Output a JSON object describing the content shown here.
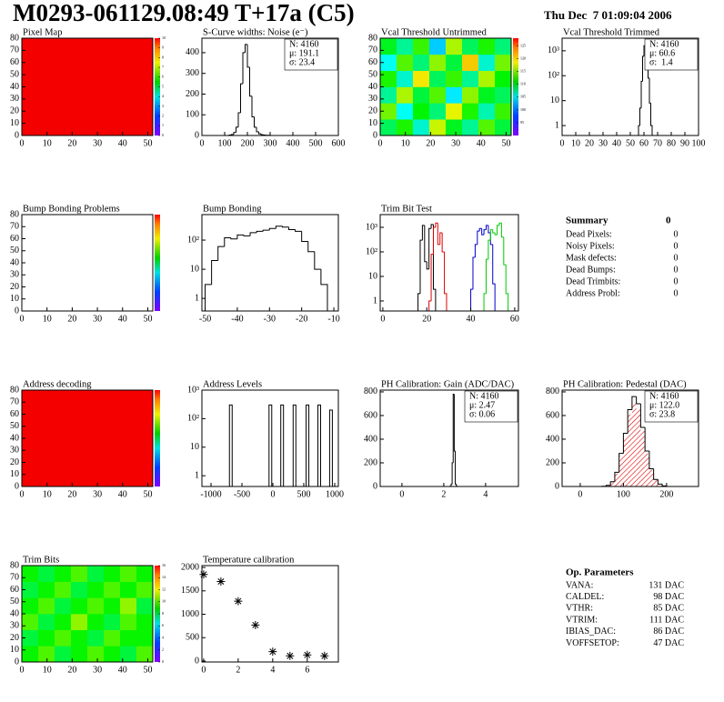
{
  "header": {
    "title": "M0293-061129.08:49 T+17a (C5)",
    "date": "Thu Dec  7 01:09:04 2006"
  },
  "chart_data": [
    {
      "type": "heatmap",
      "title": "Pixel Map",
      "xlim": [
        0,
        52
      ],
      "ylim": [
        0,
        80
      ],
      "xticks": [
        0,
        10,
        20,
        30,
        40,
        50
      ],
      "yticks": [
        0,
        10,
        20,
        30,
        40,
        50,
        60,
        70,
        80
      ],
      "zlim": [
        0,
        10
      ],
      "zticks": [
        0,
        1,
        2,
        3,
        4,
        5,
        6,
        7,
        8,
        9,
        10
      ],
      "z": [
        [
          10
        ]
      ]
    },
    {
      "type": "histogram",
      "title": "S-Curve widths: Noise (e⁻)",
      "xlim": [
        0,
        600
      ],
      "ylim": [
        0,
        470
      ],
      "xticks": [
        0,
        100,
        200,
        300,
        400,
        500,
        600
      ],
      "yticks": [
        0,
        100,
        200,
        300,
        400
      ],
      "log": false,
      "stats": [
        "N: 4160",
        "μ: 191.1",
        "σ: 23.4"
      ],
      "series": [
        {
          "color": "#000000",
          "bins": [
            120,
            130,
            140,
            150,
            160,
            170,
            180,
            190,
            200,
            210,
            220,
            230,
            240,
            250,
            260,
            270,
            280,
            290,
            300
          ],
          "values": [
            2,
            5,
            15,
            40,
            110,
            250,
            400,
            440,
            330,
            190,
            90,
            40,
            18,
            8,
            4,
            2,
            1,
            1
          ]
        }
      ]
    },
    {
      "type": "heatmap",
      "title": "Vcal Threshold Untrimmed",
      "xlim": [
        0,
        52
      ],
      "ylim": [
        0,
        80
      ],
      "xticks": [
        0,
        10,
        20,
        30,
        40,
        50
      ],
      "yticks": [
        0,
        10,
        20,
        30,
        40,
        50,
        60,
        70,
        80
      ],
      "zlim": [
        90,
        128
      ],
      "zticks": [
        95,
        100,
        105,
        110,
        115,
        120,
        125
      ],
      "z": [
        [
          108,
          112,
          104,
          118,
          110,
          106,
          114,
          109
        ],
        [
          115,
          103,
          111,
          107,
          119,
          112,
          105,
          113
        ],
        [
          106,
          117,
          109,
          114,
          102,
          116,
          110,
          108
        ],
        [
          112,
          104,
          120,
          108,
          113,
          106,
          117,
          111
        ],
        [
          103,
          114,
          107,
          116,
          109,
          121,
          104,
          115
        ],
        [
          110,
          106,
          113,
          101,
          117,
          108,
          112,
          107
        ]
      ]
    },
    {
      "type": "histogram",
      "title": "Vcal Threshold Trimmed",
      "xlim": [
        0,
        100
      ],
      "ylim": [
        0.4,
        3200
      ],
      "xticks": [
        0,
        10,
        20,
        30,
        40,
        50,
        60,
        70,
        80,
        90,
        100
      ],
      "yticks": [
        1,
        10,
        {
          "value": 100,
          "label": "10²"
        },
        {
          "value": 1000,
          "label": "10³"
        }
      ],
      "log": true,
      "stats": [
        "N: 4160",
        "μ: 60.6",
        "σ:  1.4"
      ],
      "series": [
        {
          "color": "#000000",
          "bins": [
            56,
            57,
            58,
            59,
            60,
            61,
            62,
            63,
            64,
            65,
            66
          ],
          "values": [
            1,
            5,
            60,
            600,
            1600,
            1400,
            400,
            80,
            8,
            1
          ]
        }
      ]
    },
    {
      "type": "heatmap",
      "title": "Bump Bonding Problems",
      "xlim": [
        0,
        52
      ],
      "ylim": [
        0,
        80
      ],
      "xticks": [
        0,
        10,
        20,
        30,
        40,
        50
      ],
      "yticks": [
        0,
        10,
        20,
        30,
        40,
        50,
        60,
        70,
        80
      ],
      "zlim": [
        0,
        1
      ],
      "z": []
    },
    {
      "type": "histogram",
      "title": "Bump Bonding",
      "xlim": [
        -51,
        -8.6
      ],
      "ylim": [
        0.37,
        750
      ],
      "xticks": [
        -50,
        -40,
        -30,
        -20,
        -10
      ],
      "yticks": [
        1,
        10,
        {
          "value": 100,
          "label": "10²"
        }
      ],
      "log": true,
      "series": [
        {
          "color": "#000000",
          "bins": [
            -50,
            -48,
            -46,
            -44,
            -42,
            -40,
            -38,
            -36,
            -34,
            -32,
            -30,
            -28,
            -26,
            -24,
            -22,
            -20,
            -18,
            -16,
            -14,
            -12
          ],
          "values": [
            3,
            20,
            60,
            120,
            110,
            150,
            140,
            180,
            200,
            220,
            250,
            300,
            280,
            230,
            200,
            90,
            40,
            10,
            3
          ]
        }
      ]
    },
    {
      "type": "histogram",
      "title": "Trim Bit Test",
      "xlim": [
        -1.2,
        61.7
      ],
      "ylim": [
        0.39,
        3300
      ],
      "xticks": [
        0,
        20,
        40,
        60
      ],
      "yticks": [
        1,
        10,
        {
          "value": 100,
          "label": "10²"
        },
        {
          "value": 1000,
          "label": "10³"
        }
      ],
      "log": true,
      "series": [
        {
          "color": "#000000",
          "bins": [
            16,
            17,
            18,
            19,
            20,
            21,
            22,
            23,
            24
          ],
          "values": [
            2,
            300,
            1200,
            40,
            20,
            900,
            1300,
            3
          ]
        },
        {
          "color": "#dd0000",
          "bins": [
            21,
            22,
            23,
            24,
            25,
            26,
            27,
            28,
            29
          ],
          "values": [
            1,
            80,
            1000,
            1500,
            200,
            600,
            100,
            2
          ]
        },
        {
          "color": "#0000cc",
          "bins": [
            40,
            41,
            42,
            43,
            44,
            45,
            46,
            47,
            48,
            49,
            50,
            51
          ],
          "values": [
            3,
            60,
            200,
            700,
            900,
            500,
            800,
            1200,
            600,
            200,
            5
          ]
        },
        {
          "color": "#00cc00",
          "bins": [
            46,
            47,
            48,
            49,
            50,
            51,
            52,
            53,
            54,
            55,
            56,
            57
          ],
          "values": [
            2,
            50,
            300,
            800,
            600,
            500,
            1200,
            1500,
            400,
            30,
            2
          ]
        }
      ]
    },
    {
      "type": "heatmap",
      "title": "Address decoding",
      "xlim": [
        0,
        52
      ],
      "ylim": [
        0,
        80
      ],
      "xticks": [
        0,
        10,
        20,
        30,
        40,
        50
      ],
      "yticks": [
        0,
        10,
        20,
        30,
        40,
        50,
        60,
        70,
        80
      ],
      "zlim": [
        0,
        1
      ],
      "z": [
        [
          1
        ]
      ]
    },
    {
      "type": "spikes",
      "title": "Address Levels",
      "xlim": [
        -1147,
        1059
      ],
      "ylim": [
        0.42,
        1000
      ],
      "xticks": [
        -1000,
        -500,
        0,
        500,
        1000
      ],
      "yticks": [
        1,
        10,
        {
          "value": 100,
          "label": "10²"
        },
        {
          "value": 1000,
          "label": "10³"
        }
      ],
      "log": true,
      "x": [
        -680,
        -40,
        150,
        350,
        560,
        750,
        940
      ],
      "values": [
        300,
        300,
        300,
        300,
        300,
        300,
        200
      ]
    },
    {
      "type": "histogram",
      "title": "PH Calibration: Gain (ADC/DAC)",
      "xlim": [
        -1.04,
        5.57
      ],
      "ylim": [
        0,
        815
      ],
      "xticks": [
        0,
        2,
        4
      ],
      "yticks": [
        0,
        200,
        400,
        600,
        800
      ],
      "log": false,
      "stats": [
        "N: 4160",
        "μ: 2.47",
        "σ: 0.06"
      ],
      "series": [
        {
          "color": "#000000",
          "bins": [
            2.3,
            2.35,
            2.4,
            2.45,
            2.5,
            2.55,
            2.6,
            2.65
          ],
          "values": [
            2,
            20,
            200,
            780,
            300,
            20,
            2
          ]
        }
      ]
    },
    {
      "type": "histogram",
      "title": "PH Calibration: Pedestal (DAC)",
      "xlim": [
        -42,
        274
      ],
      "ylim": [
        0,
        815
      ],
      "xticks": [
        0,
        100,
        200
      ],
      "yticks": [
        0,
        200,
        400,
        600,
        800
      ],
      "log": false,
      "stats": [
        "N: 4160",
        "μ: 122.0",
        "σ: 23.8"
      ],
      "stats_colors": [
        "#000000",
        "#dd0000",
        "#dd0000"
      ],
      "series": [
        {
          "color": "#dd0000",
          "hatch": true,
          "bins": [
            50,
            60,
            70,
            80,
            90,
            100,
            110,
            120,
            130,
            140,
            150,
            160,
            170,
            180,
            190,
            200
          ],
          "values": [
            1,
            8,
            35,
            110,
            260,
            420,
            610,
            700,
            650,
            470,
            280,
            140,
            55,
            18,
            4
          ]
        },
        {
          "color": "#000000",
          "bins": [
            50,
            60,
            70,
            80,
            90,
            100,
            110,
            120,
            130,
            140,
            150,
            160,
            170,
            180,
            190,
            200
          ],
          "values": [
            2,
            10,
            40,
            120,
            280,
            450,
            650,
            760,
            700,
            500,
            300,
            150,
            60,
            20,
            5
          ]
        }
      ]
    },
    {
      "type": "heatmap",
      "title": "Trim Bits",
      "xlim": [
        0,
        52
      ],
      "ylim": [
        0,
        80
      ],
      "xticks": [
        0,
        10,
        20,
        30,
        40,
        50
      ],
      "yticks": [
        0,
        10,
        20,
        30,
        40,
        50,
        60,
        70,
        80
      ],
      "zlim": [
        0,
        16
      ],
      "zticks": [
        0,
        2,
        4,
        6,
        8,
        10,
        12,
        14,
        16
      ],
      "z": [
        [
          9,
          10,
          8,
          9,
          10,
          9,
          8,
          10
        ],
        [
          8,
          9,
          10,
          9,
          8,
          10,
          9,
          9
        ],
        [
          10,
          8,
          9,
          11,
          9,
          8,
          10,
          9
        ],
        [
          9,
          10,
          8,
          9,
          10,
          9,
          11,
          8
        ],
        [
          8,
          9,
          10,
          8,
          9,
          10,
          9,
          10
        ],
        [
          9,
          8,
          9,
          10,
          8,
          9,
          10,
          9
        ]
      ]
    },
    {
      "type": "scatter",
      "title": "Temperature calibration",
      "xlim": [
        -0.1,
        7.8
      ],
      "ylim": [
        -20,
        2040
      ],
      "xticks": [
        0,
        2,
        4,
        6
      ],
      "yticks": [
        0,
        500,
        1000,
        1500,
        2000
      ],
      "x": [
        0,
        1,
        2,
        3,
        4,
        5,
        6,
        7
      ],
      "values": [
        1850,
        1700,
        1280,
        770,
        200,
        110,
        130,
        110
      ]
    }
  ],
  "summary": {
    "title": "Summary",
    "value": 0,
    "rows": [
      [
        "Dead Pixels:",
        0
      ],
      [
        "Noisy Pixels:",
        0
      ],
      [
        "Mask defects:",
        0
      ],
      [
        "Dead Bumps:",
        0
      ],
      [
        "Dead Trimbits:",
        0
      ],
      [
        "Address Probl:",
        0
      ]
    ]
  },
  "parameters": {
    "title": "Op. Parameters",
    "rows": [
      [
        "VANA:",
        "131 DAC"
      ],
      [
        "CALDEL:",
        "98 DAC"
      ],
      [
        "VTHR:",
        "85 DAC"
      ],
      [
        "VTRIM:",
        "111 DAC"
      ],
      [
        "IBIAS_DAC:",
        "86 DAC"
      ],
      [
        "VOFFSETOP:",
        "47 DAC"
      ]
    ]
  }
}
